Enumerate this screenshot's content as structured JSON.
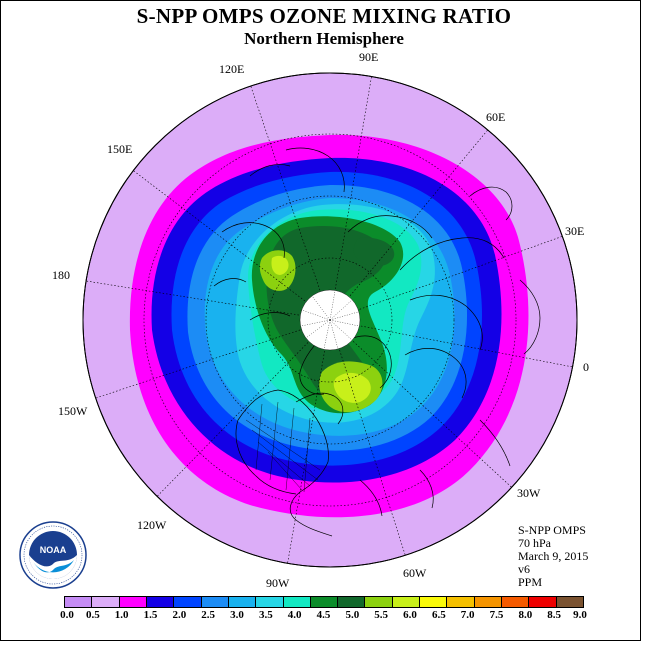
{
  "title": "S-NPP OMPS OZONE MIXING RATIO",
  "subtitle": "Northern Hemisphere",
  "longitude_labels": [
    "90E",
    "60E",
    "30E",
    "0",
    "30W",
    "60W",
    "90W",
    "120W",
    "150W",
    "180",
    "150E",
    "120E"
  ],
  "info": {
    "instrument": "S-NPP OMPS",
    "level": "70 hPa",
    "date": "March 9, 2015",
    "version": "v6",
    "units": "PPM"
  },
  "logo": {
    "text": "NOAA"
  },
  "colorbar": {
    "ticks": [
      "0.0",
      "0.5",
      "1.0",
      "1.5",
      "2.0",
      "2.5",
      "3.0",
      "3.5",
      "4.0",
      "4.5",
      "5.0",
      "5.5",
      "6.0",
      "6.5",
      "7.0",
      "7.5",
      "8.0",
      "8.5",
      "9.0"
    ],
    "colors": [
      "#c58cf5",
      "#dcadf8",
      "#ff00ff",
      "#1400e6",
      "#0044ff",
      "#1c8cf5",
      "#19b2ef",
      "#27d6e6",
      "#12e8c2",
      "#0b8c2a",
      "#11682b",
      "#8cd10f",
      "#c8f01a",
      "#fafa0a",
      "#f5c000",
      "#f59400",
      "#f55a00",
      "#ee0000",
      "#7a5230"
    ]
  },
  "map_layers": {
    "outer_disk": "#dcadf8",
    "levels": [
      {
        "value": "1.0",
        "color": "#ff00ff"
      },
      {
        "value": "1.5",
        "color": "#1400e6"
      },
      {
        "value": "2.0",
        "color": "#0044ff"
      },
      {
        "value": "2.5",
        "color": "#1c8cf5"
      },
      {
        "value": "3.0",
        "color": "#19b2ef"
      },
      {
        "value": "3.5",
        "color": "#27d6e6"
      },
      {
        "value": "4.0",
        "color": "#12e8c2"
      },
      {
        "value": "4.5",
        "color": "#0b8c2a"
      },
      {
        "value": "5.0",
        "color": "#11682b"
      },
      {
        "value": "5.5",
        "color": "#8cd10f"
      },
      {
        "value": "6.0",
        "color": "#c8f01a"
      }
    ],
    "pole_hole": "#ffffff"
  }
}
